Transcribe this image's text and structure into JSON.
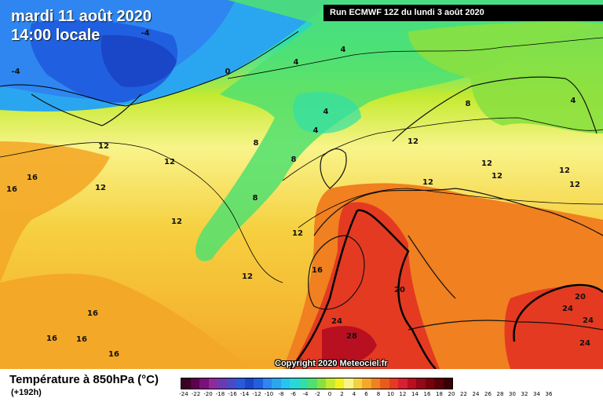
{
  "header": {
    "date": "mardi 11 août 2020",
    "time": "14:00 locale",
    "run": "Run ECMWF 12Z du lundi 3 août 2020"
  },
  "copyright": "Copyright 2020 Meteociel.fr",
  "legend": {
    "title": "Température à 850hPa (°C)",
    "subtitle": "(+192h)",
    "ticks": [
      "-24",
      "-22",
      "-20",
      "-18",
      "-16",
      "-14",
      "-12",
      "-10",
      "-8",
      "-6",
      "-4",
      "-2",
      "0",
      "2",
      "4",
      "6",
      "8",
      "10",
      "12",
      "14",
      "16",
      "18",
      "20",
      "22",
      "24",
      "26",
      "28",
      "30",
      "32",
      "34",
      "36"
    ],
    "colors": [
      "#3a0028",
      "#5c0050",
      "#7a1078",
      "#902a9a",
      "#6a3ab0",
      "#4a4ac8",
      "#2a5ad8",
      "#1a46c8",
      "#2060e0",
      "#2f86f0",
      "#2aa6f0",
      "#26c4f0",
      "#28d8d8",
      "#30e0a8",
      "#50e070",
      "#8ae040",
      "#c4ea30",
      "#f2f020",
      "#f8f48a",
      "#f6d040",
      "#f4a828",
      "#f08020",
      "#ea5a1a",
      "#e43a22",
      "#d82030",
      "#b81020",
      "#940818",
      "#7a0010",
      "#5a0008",
      "#3a0004"
    ]
  },
  "isotherm_labels": [
    "-4",
    "-4",
    "0",
    "4",
    "4",
    "4",
    "4",
    "8",
    "8",
    "8",
    "8",
    "4",
    "12",
    "12",
    "12",
    "12",
    "12",
    "12",
    "12",
    "12",
    "12",
    "12",
    "12",
    "12",
    "16",
    "16",
    "16",
    "16",
    "16",
    "16",
    "16",
    "20",
    "20",
    "24",
    "24",
    "24",
    "24",
    "28"
  ]
}
